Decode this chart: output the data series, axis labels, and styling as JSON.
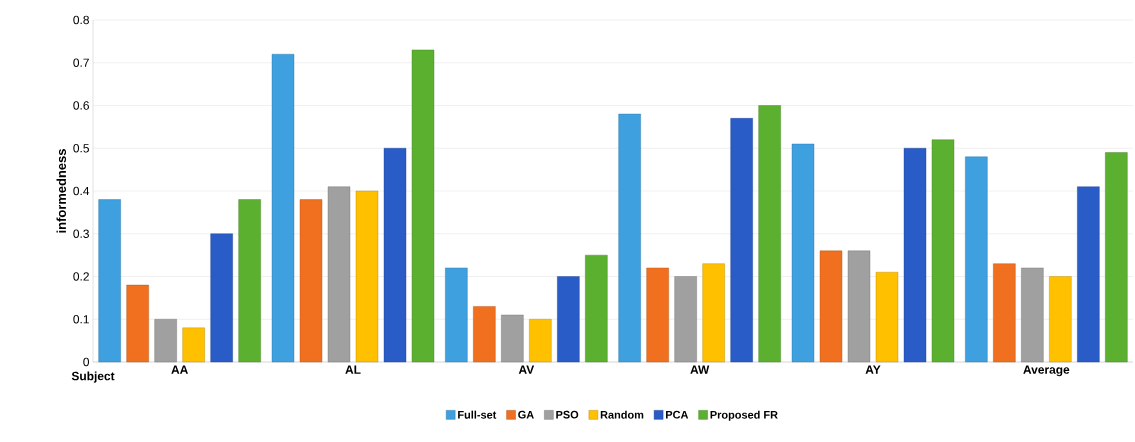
{
  "chart_data": {
    "type": "bar",
    "ylabel": "informedness",
    "categories": [
      "AA",
      "AL",
      "AV",
      "AW",
      "AY",
      "Average"
    ],
    "series": [
      {
        "name": "Full-set",
        "color": "#3fa0e0",
        "values": [
          0.38,
          0.72,
          0.22,
          0.58,
          0.51,
          0.48
        ]
      },
      {
        "name": "GA",
        "color": "#f07020",
        "values": [
          0.18,
          0.38,
          0.13,
          0.22,
          0.26,
          0.23
        ]
      },
      {
        "name": "PSO",
        "color": "#a0a0a0",
        "values": [
          0.1,
          0.41,
          0.11,
          0.2,
          0.26,
          0.22
        ]
      },
      {
        "name": "Random",
        "color": "#ffc000",
        "values": [
          0.08,
          0.4,
          0.1,
          0.23,
          0.21,
          0.2
        ]
      },
      {
        "name": "PCA",
        "color": "#2a5cc8",
        "values": [
          0.3,
          0.5,
          0.2,
          0.57,
          0.5,
          0.41
        ]
      },
      {
        "name": "Proposed FR",
        "color": "#5cb030",
        "values": [
          0.38,
          0.73,
          0.25,
          0.6,
          0.52,
          0.49
        ]
      }
    ],
    "ylim": [
      0,
      0.8
    ],
    "yticks": [
      0,
      0.1,
      0.2,
      0.3,
      0.4,
      0.5,
      0.6,
      0.7,
      0.8
    ],
    "grid": "y",
    "legend": "bottom",
    "annotations": [
      "Subject"
    ]
  }
}
